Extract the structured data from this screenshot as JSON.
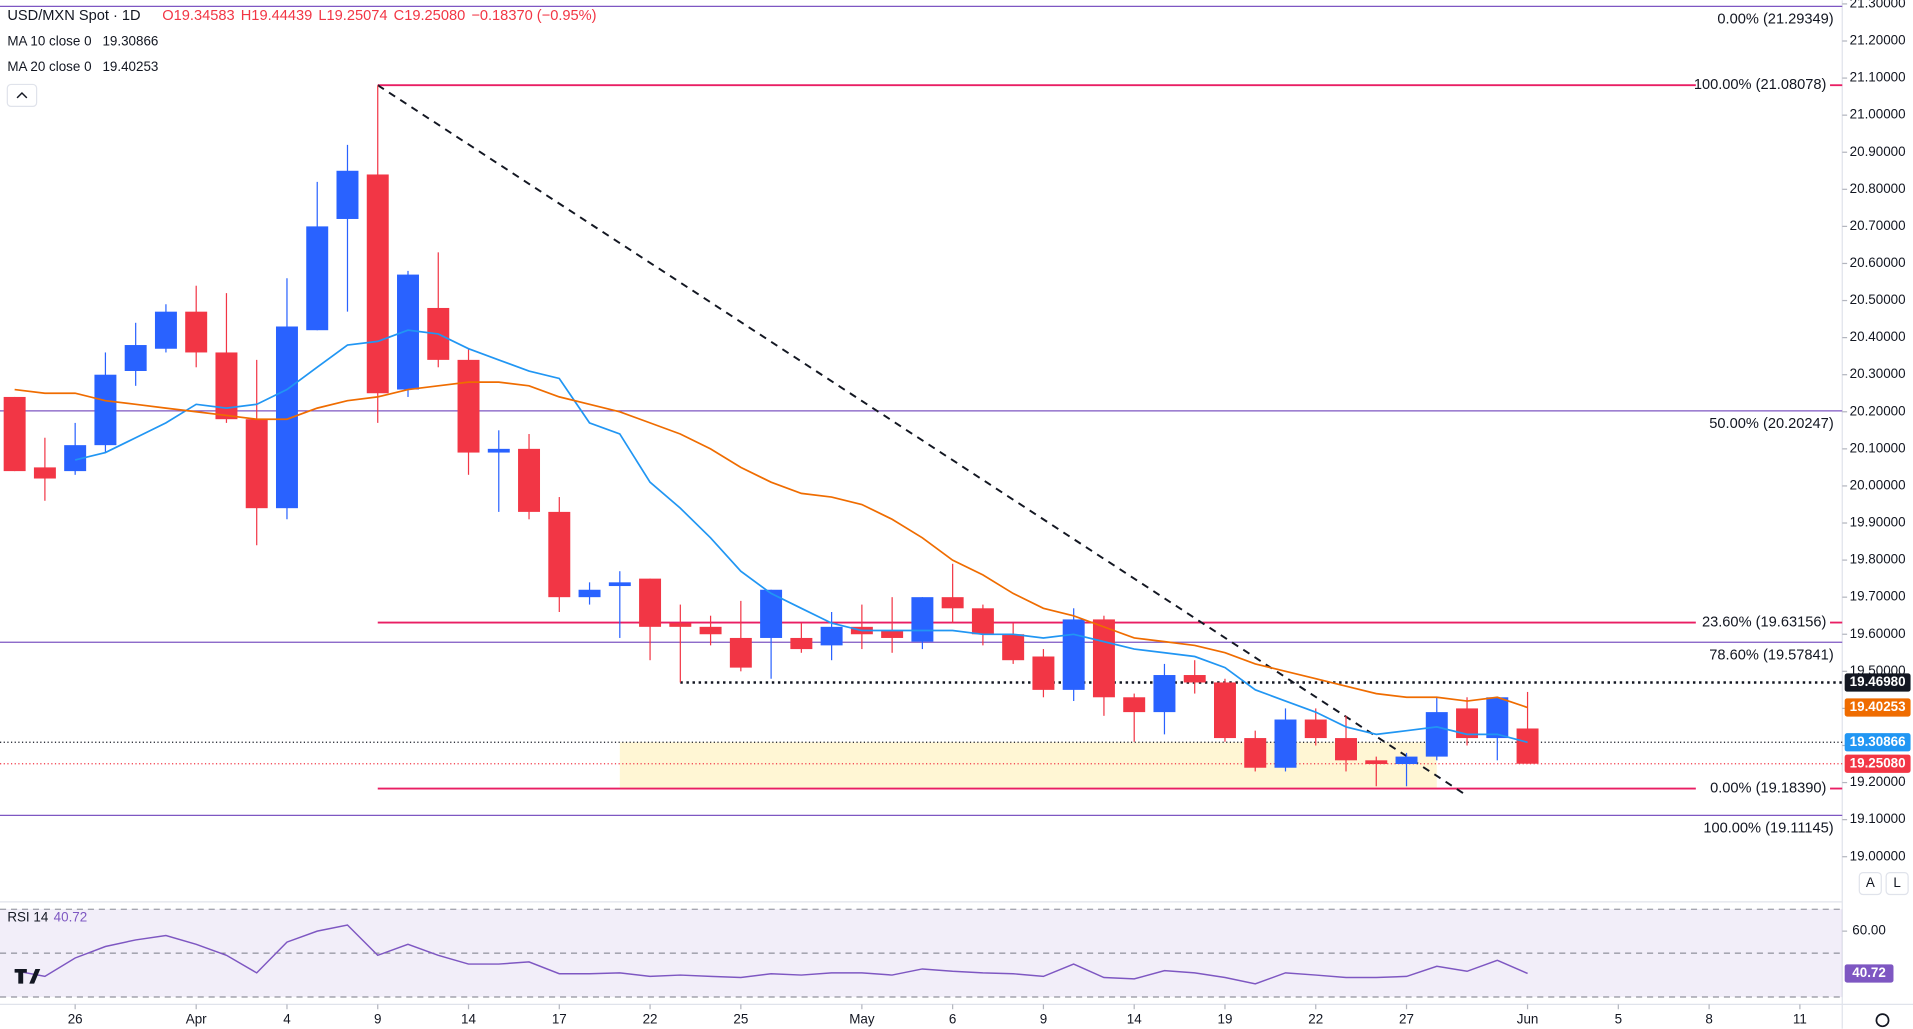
{
  "chart_data": {
    "type": "candlestick",
    "title": "USD/MXN Spot · 1D",
    "ohlc_text": [
      "O19.34583",
      "H19.44439",
      "L19.25074",
      "C19.25080",
      "−0.18370 (−0.95%)"
    ],
    "candles": {
      "open": [
        20.24,
        20.05,
        20.04,
        20.11,
        20.31,
        20.37,
        20.47,
        20.36,
        20.18,
        19.94,
        20.42,
        20.72,
        20.84,
        20.26,
        20.48,
        20.34,
        20.09,
        20.1,
        19.93,
        19.7,
        19.73,
        19.75,
        19.63,
        19.62,
        19.59,
        19.59,
        19.59,
        19.57,
        19.62,
        19.61,
        19.58,
        19.7,
        19.67,
        19.6,
        19.54,
        19.45,
        19.64,
        19.43,
        19.39,
        19.49,
        19.47,
        19.32,
        19.24,
        19.37,
        19.32,
        19.26,
        19.25,
        19.27,
        19.4,
        19.32,
        19.34583
      ],
      "high": [
        20.24,
        20.13,
        20.17,
        20.36,
        20.44,
        20.49,
        20.54,
        20.52,
        20.34,
        20.56,
        20.82,
        20.92,
        21.08,
        20.58,
        20.63,
        20.37,
        20.15,
        20.14,
        19.97,
        19.74,
        19.77,
        19.75,
        19.68,
        19.65,
        19.69,
        19.72,
        19.63,
        19.66,
        19.68,
        19.7,
        19.7,
        19.79,
        19.68,
        19.63,
        19.56,
        19.67,
        19.65,
        19.44,
        19.52,
        19.53,
        19.48,
        19.34,
        19.4,
        19.4,
        19.38,
        19.27,
        19.28,
        19.43,
        19.43,
        19.43,
        19.44439
      ],
      "low": [
        20.04,
        19.96,
        20.03,
        20.09,
        20.27,
        20.36,
        20.32,
        20.17,
        19.84,
        19.91,
        20.42,
        20.47,
        20.17,
        20.24,
        20.32,
        20.03,
        19.93,
        19.91,
        19.66,
        19.68,
        19.59,
        19.53,
        19.47,
        19.57,
        19.5,
        19.48,
        19.55,
        19.53,
        19.56,
        19.55,
        19.56,
        19.63,
        19.57,
        19.52,
        19.43,
        19.42,
        19.38,
        19.31,
        19.33,
        19.44,
        19.31,
        19.23,
        19.23,
        19.3,
        19.23,
        19.19,
        19.19,
        19.26,
        19.3,
        19.26,
        19.25074
      ],
      "close": [
        20.04,
        20.02,
        20.11,
        20.3,
        20.38,
        20.47,
        20.36,
        20.18,
        19.94,
        20.43,
        20.7,
        20.85,
        20.25,
        20.57,
        20.34,
        20.09,
        20.1,
        19.93,
        19.7,
        19.72,
        19.74,
        19.62,
        19.62,
        19.6,
        19.51,
        19.72,
        19.56,
        19.62,
        19.6,
        19.59,
        19.7,
        19.67,
        19.6,
        19.53,
        19.45,
        19.64,
        19.43,
        19.39,
        19.49,
        19.47,
        19.32,
        19.24,
        19.37,
        19.32,
        19.26,
        19.25,
        19.27,
        19.39,
        19.32,
        19.43,
        19.2508
      ],
      "up_color": "#2962ff",
      "down_color": "#f23645"
    },
    "series": [
      {
        "name": "MA 10 close 0",
        "color": "#2196f3",
        "values": [
          null,
          null,
          20.07,
          20.09,
          20.13,
          20.17,
          20.22,
          20.21,
          20.22,
          20.26,
          20.32,
          20.38,
          20.39,
          20.42,
          20.41,
          20.37,
          20.34,
          20.31,
          20.29,
          20.17,
          20.14,
          20.01,
          19.94,
          19.86,
          19.77,
          19.71,
          19.67,
          19.63,
          19.61,
          19.61,
          19.61,
          19.61,
          19.6,
          19.6,
          19.59,
          19.6,
          19.58,
          19.56,
          19.55,
          19.54,
          19.51,
          19.45,
          19.42,
          19.39,
          19.35,
          19.33,
          19.34,
          19.35,
          19.33,
          19.33,
          19.30866
        ]
      },
      {
        "name": "MA 20 close 0",
        "color": "#ef6c00",
        "values": [
          20.26,
          20.25,
          20.25,
          20.23,
          20.22,
          20.21,
          20.2,
          20.19,
          20.18,
          20.18,
          20.21,
          20.23,
          20.24,
          20.26,
          20.27,
          20.28,
          20.28,
          20.27,
          20.24,
          20.22,
          20.2,
          20.17,
          20.14,
          20.1,
          20.05,
          20.01,
          19.98,
          19.97,
          19.95,
          19.91,
          19.86,
          19.8,
          19.76,
          19.71,
          19.67,
          19.65,
          19.62,
          19.59,
          19.58,
          19.57,
          19.55,
          19.52,
          19.5,
          19.48,
          19.46,
          19.44,
          19.43,
          19.43,
          19.42,
          19.43,
          19.40253
        ]
      }
    ],
    "xlim": [
      -0.484,
      60.4
    ],
    "xticks": [
      {
        "value": 2,
        "label": "26"
      },
      {
        "value": 6,
        "label": "Apr"
      },
      {
        "value": 9,
        "label": "4"
      },
      {
        "value": 12,
        "label": "9"
      },
      {
        "value": 15,
        "label": "14"
      },
      {
        "value": 18,
        "label": "17"
      },
      {
        "value": 21,
        "label": "22"
      },
      {
        "value": 24,
        "label": "25"
      },
      {
        "value": 28,
        "label": "May"
      },
      {
        "value": 31,
        "label": "6"
      },
      {
        "value": 34,
        "label": "9"
      },
      {
        "value": 37,
        "label": "14"
      },
      {
        "value": 40,
        "label": "19"
      },
      {
        "value": 43,
        "label": "22"
      },
      {
        "value": 46,
        "label": "27"
      },
      {
        "value": 50,
        "label": "Jun"
      },
      {
        "value": 53,
        "label": "5"
      },
      {
        "value": 56,
        "label": "8"
      },
      {
        "value": 59,
        "label": "11"
      }
    ],
    "ylim": [
      19,
      21.3
    ],
    "yticks": [
      {
        "value": 19,
        "label": "19.00000"
      },
      {
        "value": 19.1,
        "label": "19.10000"
      },
      {
        "value": 19.2,
        "label": "19.20000"
      },
      {
        "value": 19.3,
        "label": "19.30000"
      },
      {
        "value": 19.4,
        "label": "19.40000"
      },
      {
        "value": 19.5,
        "label": "19.50000"
      },
      {
        "value": 19.6,
        "label": "19.60000"
      },
      {
        "value": 19.7,
        "label": "19.70000"
      },
      {
        "value": 19.8,
        "label": "19.80000"
      },
      {
        "value": 19.9,
        "label": "19.90000"
      },
      {
        "value": 20,
        "label": "20.00000"
      },
      {
        "value": 20.1,
        "label": "20.10000"
      },
      {
        "value": 20.2,
        "label": "20.20000"
      },
      {
        "value": 20.3,
        "label": "20.30000"
      },
      {
        "value": 20.4,
        "label": "20.40000"
      },
      {
        "value": 20.5,
        "label": "20.50000"
      },
      {
        "value": 20.6,
        "label": "20.60000"
      },
      {
        "value": 20.7,
        "label": "20.70000"
      },
      {
        "value": 20.8,
        "label": "20.80000"
      },
      {
        "value": 20.9,
        "label": "20.90000"
      },
      {
        "value": 21,
        "label": "21.00000"
      },
      {
        "value": 21.1,
        "label": "21.10000"
      },
      {
        "value": 21.2,
        "label": "21.20000"
      },
      {
        "value": 21.3,
        "label": "21.30000"
      }
    ],
    "fib_levels": [
      {
        "label": "0.00% (21.29349)",
        "value": 21.29349,
        "color": "#7e57c2"
      },
      {
        "label": "50.00% (20.20247)",
        "value": 20.20247,
        "color": "#7e57c2"
      },
      {
        "label": "78.60% (19.57841)",
        "value": 19.57841,
        "color": "#7e57c2"
      },
      {
        "label": "100.00% (19.11145)",
        "value": 19.11145,
        "color": "#7e57c2"
      },
      {
        "label": "100.00% (21.08078)",
        "value": 21.08078,
        "color": "#e91e63",
        "start": 12
      },
      {
        "label": "23.60% (19.63156)",
        "value": 19.63156,
        "color": "#e91e63",
        "start": 12
      },
      {
        "label": "0.00% (19.18390)",
        "value": 19.1839,
        "color": "#e91e63",
        "start": 12
      }
    ],
    "zone": {
      "x": [
        20,
        47
      ],
      "y": [
        19.1839,
        19.30866
      ],
      "color": "#fff4cc"
    },
    "trendline": {
      "x": [
        12,
        47.9
      ],
      "y": [
        21.08078,
        19.17
      ]
    },
    "price_lines": [
      {
        "value": 19.4698,
        "start": 22,
        "color": "#131722",
        "width": 2
      },
      {
        "value": 19.30866,
        "color": "#131722",
        "width": 1
      },
      {
        "value": 19.2508,
        "color": "#f23645",
        "width": 1
      }
    ],
    "badges": [
      {
        "value": 19.4698,
        "label": "19.46980",
        "color": "#131722"
      },
      {
        "value": 19.40253,
        "label": "19.40253",
        "color": "#ef6c00"
      },
      {
        "value": 19.30866,
        "label": "19.30866",
        "color": "#2196f3"
      },
      {
        "value": 19.2508,
        "label": "19.25080",
        "color": "#f23645"
      }
    ],
    "rsi": {
      "name": "RSI 14",
      "color": "#7e57c2",
      "values": [
        42,
        39.4,
        47.8,
        53,
        56,
        58,
        54,
        49,
        41,
        55,
        60,
        62.8,
        49,
        54,
        49,
        45,
        45,
        46,
        40.6,
        40.6,
        41,
        39.4,
        40,
        39.4,
        38.9,
        40.6,
        40,
        41,
        41,
        40,
        42.8,
        41.7,
        41,
        40.6,
        39.4,
        45,
        38.9,
        38.3,
        42,
        41,
        38.9,
        36,
        41,
        40,
        38.9,
        38.9,
        39.4,
        44,
        41.7,
        46.7,
        40.72
      ],
      "ylim": [
        30,
        70
      ],
      "yticks": [
        {
          "value": 60,
          "label": "60.00"
        }
      ],
      "bands": [
        30,
        50,
        70
      ]
    },
    "scale_buttons": [
      "A",
      "L"
    ]
  }
}
